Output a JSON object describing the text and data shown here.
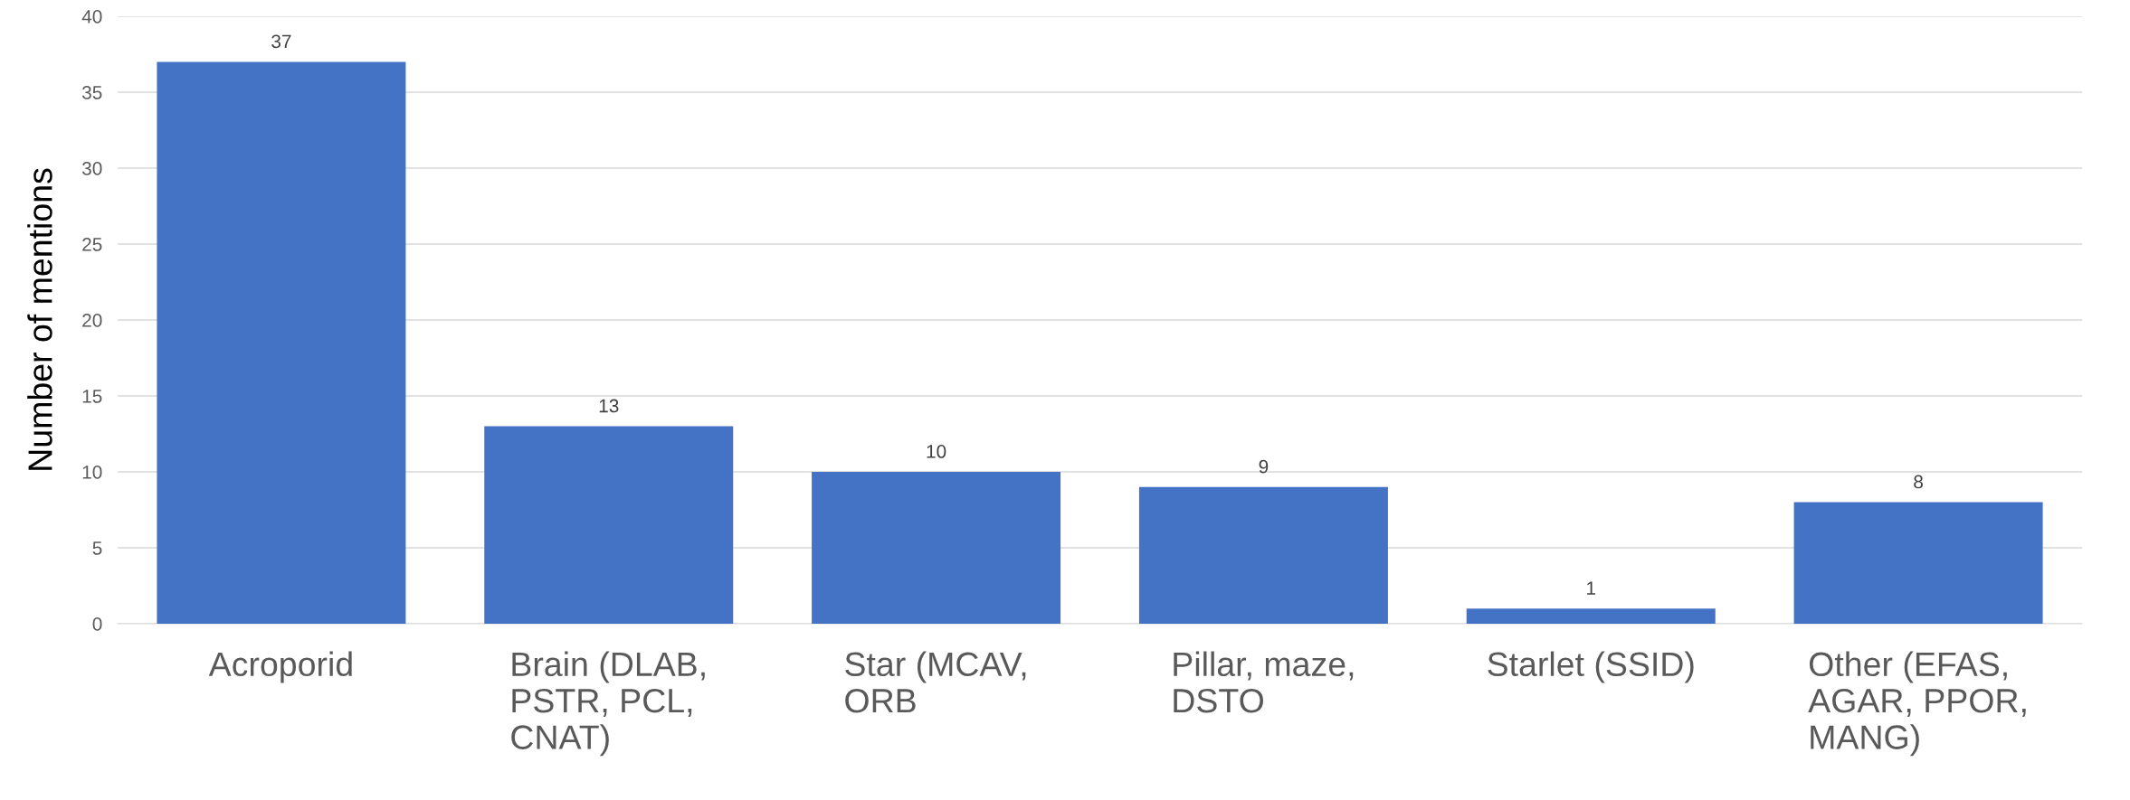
{
  "chart_data": {
    "type": "bar",
    "ylabel": "Number of mentions",
    "categories": [
      "Acroporid",
      "Brain (DLAB,\nPSTR, PCL,\nCNAT)",
      "Star (MCAV,\nORB",
      "Pillar, maze,\nDSTO",
      "Starlet (SSID)",
      "Other (EFAS,\nAGAR, PPOR,\nMANG)"
    ],
    "values": [
      37,
      13,
      10,
      9,
      1,
      8
    ],
    "color": "#4472c4",
    "ylim": [
      0,
      40
    ],
    "yticks": [
      0,
      5,
      10,
      15,
      20,
      25,
      30,
      35,
      40
    ],
    "grid": "y",
    "data_labels": true,
    "legend": false
  }
}
